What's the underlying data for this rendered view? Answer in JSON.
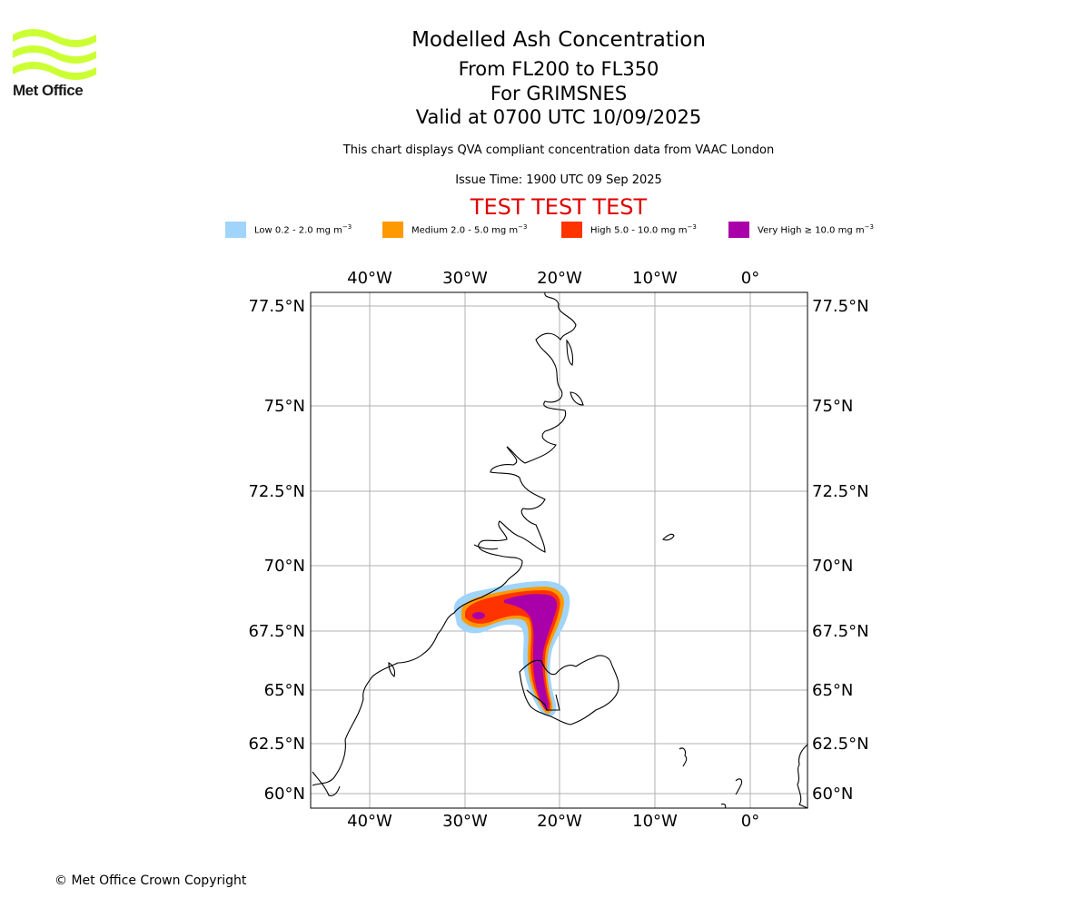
{
  "logo": {
    "text": "Met Office",
    "wave_color": "#ccff33"
  },
  "header": {
    "title": "Modelled Ash Concentration",
    "levels": "From FL200 to FL350",
    "volcano": "For GRIMSNES",
    "valid": "Valid at 0700 UTC 10/09/2025",
    "info": "This chart displays QVA compliant concentration data from VAAC London",
    "issue": "Issue Time: 1900 UTC 09 Sep 2025",
    "test_banner": "TEST TEST TEST"
  },
  "legend": [
    {
      "label": "Low 0.2 - 2.0 mg m",
      "sup": "−3",
      "color": "#a0d4fa"
    },
    {
      "label": "Medium 2.0 - 5.0 mg m",
      "sup": "−3",
      "color": "#ff9900"
    },
    {
      "label": "High 5.0 - 10.0 mg m",
      "sup": "−3",
      "color": "#ff3300"
    },
    {
      "label": "Very High  ≥  10.0 mg m",
      "sup": "−3",
      "color": "#aa00aa"
    }
  ],
  "map": {
    "lon_ticks": [
      "40°W",
      "30°W",
      "20°W",
      "10°W",
      "0°"
    ],
    "lat_ticks": [
      "77.5°N",
      "75°N",
      "72.5°N",
      "70°N",
      "67.5°N",
      "65°N",
      "62.5°N",
      "60°N"
    ],
    "grid_color": "#b0b0b0",
    "coast_color": "#000000"
  },
  "footer": {
    "copyright": "© Met Office Crown Copyright"
  }
}
